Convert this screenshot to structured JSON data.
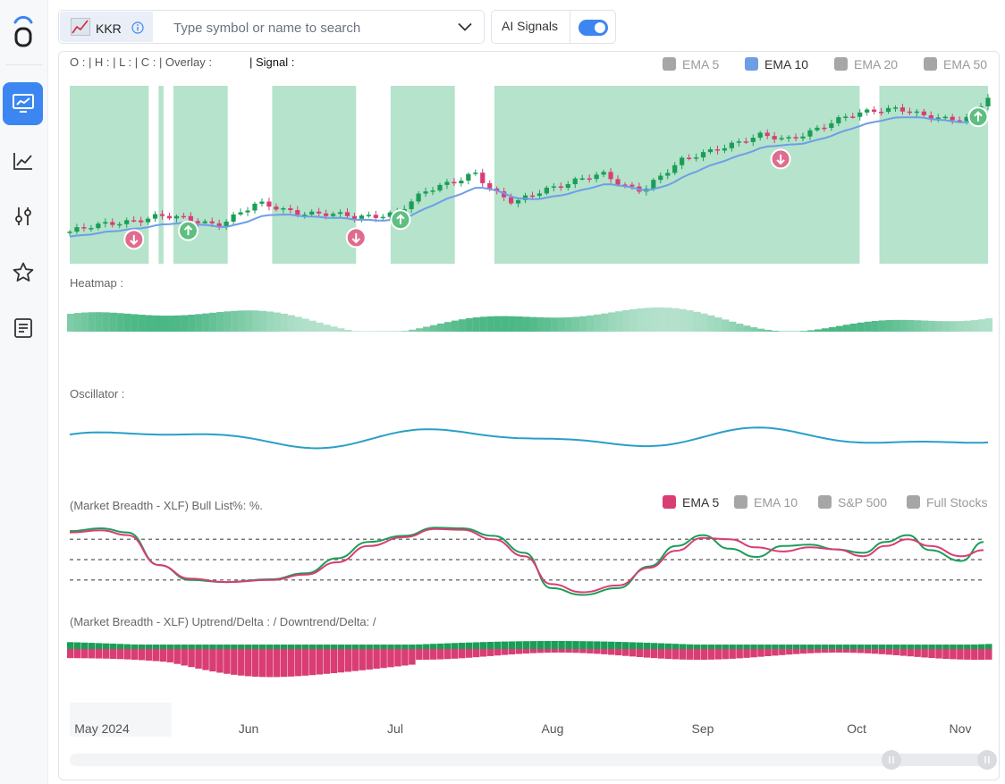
{
  "sidebar": {
    "items": [
      {
        "icon": "monitor-chart-icon",
        "active": true
      },
      {
        "icon": "line-chart-icon",
        "active": false
      },
      {
        "icon": "sliders-icon",
        "active": false
      },
      {
        "icon": "star-icon",
        "active": false
      },
      {
        "icon": "document-icon",
        "active": false
      }
    ]
  },
  "search": {
    "ticker": "KKR",
    "placeholder": "Type symbol or name to search"
  },
  "ai_signals": {
    "label": "AI Signals",
    "enabled": true
  },
  "ohlc_bar": {
    "text": "O : | H : | L : | C : | Overlay  :",
    "signal": "| Signal :"
  },
  "ema_legend_top": [
    {
      "label": "EMA 5",
      "color": "#a6a6a6",
      "active": false
    },
    {
      "label": "EMA 10",
      "color": "#6e9ee6",
      "active": true
    },
    {
      "label": "EMA 20",
      "color": "#a6a6a6",
      "active": false
    },
    {
      "label": "EMA 50",
      "color": "#a6a6a6",
      "active": false
    }
  ],
  "sections": {
    "heatmap": "Heatmap :",
    "oscillator": "Oscillator :",
    "bull_list": "(Market Breadth - XLF) Bull List%: %.",
    "uptrend": "(Market Breadth - XLF) Uptrend/Delta : /  Downtrend/Delta: /"
  },
  "breadth_legend": [
    {
      "label": "EMA 5",
      "color": "#d93d74",
      "active": true
    },
    {
      "label": "EMA 10",
      "color": "#a6a6a6",
      "active": false
    },
    {
      "label": "S&P 500",
      "color": "#a6a6a6",
      "active": false
    },
    {
      "label": "Full Stocks",
      "color": "#a6a6a6",
      "active": false
    }
  ],
  "x_axis": [
    "May 2024",
    "Jun",
    "Jul",
    "Aug",
    "Sep",
    "Oct",
    "Nov"
  ],
  "colors": {
    "up": "#1a9e57",
    "down": "#d93d74",
    "accent": "#3c86f2",
    "signal_zone": "#b5e3cb",
    "ema10": "#6e9ee6",
    "oscillator": "#2a9fc8"
  },
  "chart_data": {
    "type": "candlestick",
    "price_scale": {
      "min": 1.0,
      "max": 10.0,
      "note": "relative price level as read from the plot; no axis ticks are printed"
    },
    "n_candles": 130,
    "anchors": [
      [
        0,
        2.6
      ],
      [
        6,
        2.9
      ],
      [
        10,
        3.1
      ],
      [
        18,
        3.4
      ],
      [
        24,
        3.2
      ],
      [
        30,
        3.0
      ],
      [
        38,
        4.0
      ],
      [
        44,
        3.7
      ],
      [
        52,
        3.5
      ],
      [
        58,
        3.3
      ],
      [
        66,
        3.6
      ],
      [
        72,
        4.6
      ],
      [
        78,
        5.2
      ],
      [
        82,
        5.7
      ],
      [
        86,
        4.6
      ],
      [
        90,
        4.0
      ],
      [
        96,
        4.8
      ],
      [
        102,
        5.2
      ],
      [
        108,
        5.5
      ],
      [
        112,
        5.0
      ],
      [
        116,
        4.8
      ],
      [
        124,
        6.2
      ],
      [
        132,
        7.0
      ],
      [
        140,
        7.5
      ],
      [
        145,
        7.3
      ],
      [
        152,
        8.0
      ],
      [
        158,
        8.5
      ],
      [
        164,
        8.9
      ],
      [
        168,
        9.0
      ],
      [
        173,
        8.5
      ],
      [
        178,
        8.3
      ],
      [
        182,
        8.5
      ],
      [
        186,
        9.6
      ]
    ],
    "signal_zones_days": [
      [
        0,
        16
      ],
      [
        18,
        19
      ],
      [
        21,
        32
      ],
      [
        41,
        58
      ],
      [
        65,
        78
      ],
      [
        86,
        160
      ],
      [
        164,
        186
      ]
    ],
    "signals": [
      {
        "day": 13,
        "type": "down"
      },
      {
        "day": 24,
        "type": "up"
      },
      {
        "day": 58,
        "type": "down"
      },
      {
        "day": 67,
        "type": "up"
      },
      {
        "day": 144,
        "type": "down"
      },
      {
        "day": 184,
        "type": "up"
      }
    ],
    "breadth_levels": [
      20,
      50,
      80
    ],
    "breadth_ema5": [
      [
        0,
        90
      ],
      [
        7,
        93
      ],
      [
        13,
        86
      ],
      [
        20,
        42
      ],
      [
        27,
        22
      ],
      [
        35,
        17
      ],
      [
        45,
        20
      ],
      [
        53,
        28
      ],
      [
        60,
        46
      ],
      [
        67,
        70
      ],
      [
        75,
        83
      ],
      [
        82,
        95
      ],
      [
        88,
        94
      ],
      [
        95,
        80
      ],
      [
        102,
        55
      ],
      [
        108,
        14
      ],
      [
        115,
        2
      ],
      [
        123,
        12
      ],
      [
        130,
        38
      ],
      [
        136,
        63
      ],
      [
        142,
        82
      ],
      [
        148,
        80
      ],
      [
        154,
        68
      ],
      [
        160,
        62
      ],
      [
        166,
        68
      ],
      [
        172,
        65
      ],
      [
        178,
        55
      ],
      [
        183,
        70
      ],
      [
        188,
        80
      ],
      [
        193,
        70
      ],
      [
        200,
        55
      ],
      [
        205,
        64
      ]
    ],
    "breadth_ema10": [
      [
        0,
        92
      ],
      [
        7,
        96
      ],
      [
        13,
        90
      ],
      [
        20,
        42
      ],
      [
        27,
        20
      ],
      [
        35,
        17
      ],
      [
        45,
        21
      ],
      [
        53,
        30
      ],
      [
        60,
        52
      ],
      [
        67,
        76
      ],
      [
        75,
        85
      ],
      [
        82,
        97
      ],
      [
        88,
        96
      ],
      [
        95,
        85
      ],
      [
        102,
        60
      ],
      [
        108,
        8
      ],
      [
        115,
        -2
      ],
      [
        123,
        8
      ],
      [
        130,
        40
      ],
      [
        136,
        70
      ],
      [
        142,
        86
      ],
      [
        148,
        66
      ],
      [
        154,
        54
      ],
      [
        160,
        70
      ],
      [
        166,
        72
      ],
      [
        172,
        65
      ],
      [
        178,
        60
      ],
      [
        183,
        76
      ],
      [
        188,
        86
      ],
      [
        193,
        64
      ],
      [
        200,
        48
      ],
      [
        205,
        76
      ]
    ]
  }
}
